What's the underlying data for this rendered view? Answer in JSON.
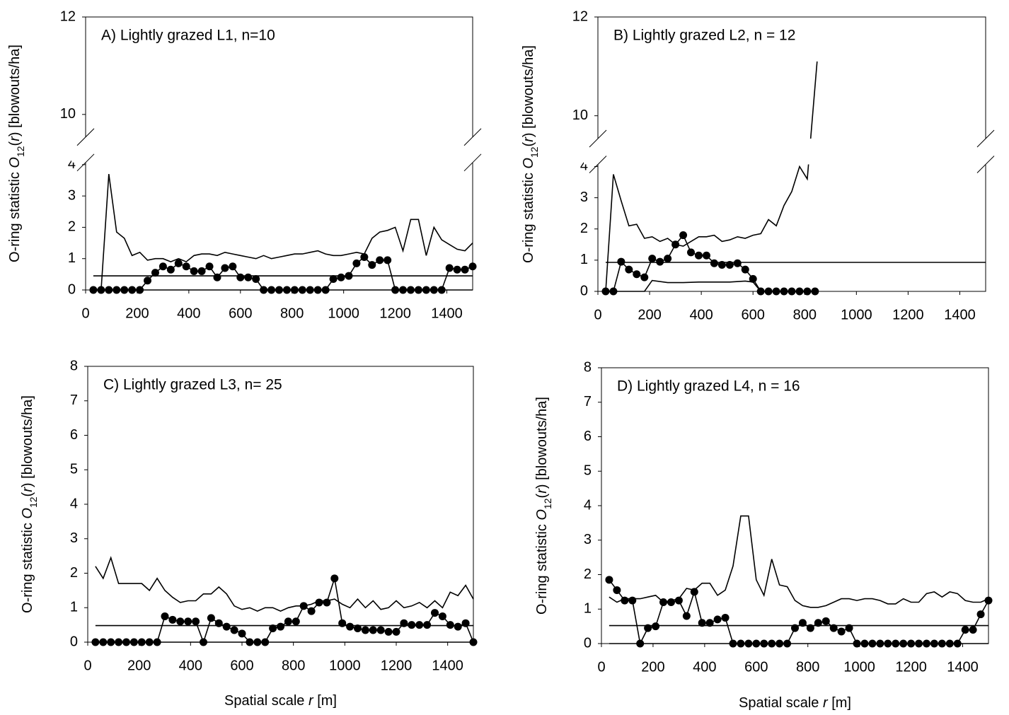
{
  "chart_data": [
    {
      "type": "line",
      "title": "A) Lightly grazed L1, n=10",
      "ylabel": [
        "O-ring statistic ",
        "O",
        "12",
        "(",
        "r",
        ") [blowouts/ha]"
      ],
      "xlim": [
        0,
        1500
      ],
      "xticks": [
        0,
        200,
        400,
        600,
        800,
        1000,
        1200,
        1400
      ],
      "ylim": [
        0,
        12
      ],
      "ybreak": [
        4,
        10
      ],
      "yticks": [
        0,
        1,
        2,
        3,
        4,
        10,
        12
      ],
      "x": [
        30,
        60,
        90,
        120,
        150,
        180,
        210,
        240,
        270,
        300,
        330,
        360,
        390,
        420,
        450,
        480,
        510,
        540,
        570,
        600,
        630,
        660,
        690,
        720,
        750,
        780,
        810,
        840,
        870,
        900,
        930,
        960,
        990,
        1020,
        1050,
        1080,
        1110,
        1140,
        1170,
        1200,
        1230,
        1260,
        1290,
        1320,
        1350,
        1380,
        1410,
        1440,
        1470,
        1500
      ],
      "series": [
        {
          "color": "#000000",
          "markers": true,
          "values": [
            0,
            0,
            0,
            0,
            0,
            0,
            0,
            0.3,
            0.55,
            0.75,
            0.65,
            0.85,
            0.75,
            0.6,
            0.6,
            0.75,
            0.4,
            0.7,
            0.75,
            0.4,
            0.4,
            0.35,
            0,
            0,
            0,
            0,
            0,
            0,
            0,
            0,
            0,
            0.35,
            0.4,
            0.45,
            0.85,
            1.05,
            0.8,
            0.95,
            0.95,
            0,
            0,
            0,
            0,
            0,
            0,
            0,
            0.7,
            0.65,
            0.65,
            0.75
          ]
        },
        {
          "color": "#000000",
          "markers": false,
          "values": [
            0,
            0,
            3.7,
            1.85,
            1.65,
            1.1,
            1.2,
            0.95,
            1.0,
            1.0,
            0.9,
            1.0,
            0.9,
            1.1,
            1.15,
            1.15,
            1.1,
            1.2,
            1.15,
            1.1,
            1.05,
            1.0,
            1.1,
            1.0,
            1.05,
            1.1,
            1.15,
            1.15,
            1.2,
            1.25,
            1.15,
            1.1,
            1.1,
            1.15,
            1.2,
            1.15,
            1.65,
            1.85,
            1.9,
            2.0,
            1.25,
            2.25,
            2.25,
            1.1,
            2.0,
            1.6,
            1.45,
            1.3,
            1.25,
            1.5
          ]
        },
        {
          "color": "#000000",
          "markers": false,
          "x": [
            30,
            1500
          ],
          "values": [
            0,
            0
          ]
        },
        {
          "color": "#000000",
          "markers": false,
          "x": [
            30,
            1500
          ],
          "values": [
            0.45,
            0.45
          ]
        }
      ]
    },
    {
      "type": "line",
      "title": "B) Lightly grazed L2, n = 12",
      "ylabel": [
        "O-ring statistic ",
        "O",
        "12",
        "(",
        "r",
        ") [blowouts/ha]"
      ],
      "xlim": [
        0,
        1500
      ],
      "xticks": [
        0,
        200,
        400,
        600,
        800,
        1000,
        1200,
        1400
      ],
      "ylim": [
        0,
        12
      ],
      "ybreak": [
        4,
        10
      ],
      "yticks": [
        0,
        1,
        2,
        3,
        4,
        10,
        12
      ],
      "x": [
        30,
        60,
        90,
        120,
        150,
        180,
        210,
        240,
        270,
        300,
        330,
        360,
        390,
        420,
        450,
        480,
        510,
        540,
        570,
        600,
        630,
        660,
        690,
        720,
        750,
        780,
        810,
        840
      ],
      "series": [
        {
          "color": "#000000",
          "markers": true,
          "values": [
            0,
            0,
            0.95,
            0.7,
            0.55,
            0.45,
            1.05,
            0.95,
            1.05,
            1.5,
            1.8,
            1.25,
            1.15,
            1.15,
            0.9,
            0.85,
            0.85,
            0.9,
            0.7,
            0.4,
            0,
            0,
            0,
            0,
            0,
            0,
            0,
            0
          ]
        },
        {
          "color": "#000000",
          "markers": false,
          "x": [
            30,
            60,
            90,
            120,
            150,
            180,
            210,
            240,
            270,
            300,
            330,
            360,
            390,
            420,
            450,
            480,
            510,
            540,
            570,
            600,
            630,
            660,
            690,
            720,
            750,
            780,
            810,
            848
          ],
          "values": [
            0,
            3.75,
            2.9,
            2.1,
            2.15,
            1.7,
            1.75,
            1.6,
            1.7,
            1.5,
            1.45,
            1.6,
            1.75,
            1.75,
            1.8,
            1.6,
            1.65,
            1.75,
            1.7,
            1.8,
            1.85,
            2.3,
            2.1,
            2.75,
            3.2,
            4.0,
            3.6,
            11.1
          ]
        },
        {
          "color": "#000000",
          "markers": false,
          "x": [
            30,
            180,
            210,
            270,
            330,
            390,
            450,
            510,
            570,
            600,
            630
          ],
          "values": [
            0,
            0,
            0.35,
            0.28,
            0.28,
            0.3,
            0.3,
            0.3,
            0.33,
            0.3,
            0
          ]
        },
        {
          "color": "#000000",
          "markers": false,
          "x": [
            30,
            1500
          ],
          "values": [
            0.93,
            0.93
          ]
        }
      ]
    },
    {
      "type": "line",
      "title": "C) Lightly grazed L3, n= 25",
      "ylabel": [
        "O-ring statistic ",
        "O",
        "12",
        "(",
        "r",
        ") [blowouts/ha]"
      ],
      "xlabel": [
        "Spatial scale ",
        "r",
        " [m]"
      ],
      "xlim": [
        0,
        1500
      ],
      "xticks": [
        0,
        200,
        400,
        600,
        800,
        1000,
        1200,
        1400
      ],
      "ylim": [
        0,
        8
      ],
      "yticks": [
        0,
        1,
        2,
        3,
        4,
        5,
        6,
        7,
        8
      ],
      "x": [
        30,
        60,
        90,
        120,
        150,
        180,
        210,
        240,
        270,
        300,
        330,
        360,
        390,
        420,
        450,
        480,
        510,
        540,
        570,
        600,
        630,
        660,
        690,
        720,
        750,
        780,
        810,
        840,
        870,
        900,
        930,
        960,
        990,
        1020,
        1050,
        1080,
        1110,
        1140,
        1170,
        1200,
        1230,
        1260,
        1290,
        1320,
        1350,
        1380,
        1410,
        1440,
        1470,
        1500
      ],
      "series": [
        {
          "color": "#000000",
          "markers": true,
          "values": [
            0,
            0,
            0,
            0,
            0,
            0,
            0,
            0,
            0,
            0.75,
            0.65,
            0.6,
            0.6,
            0.6,
            0,
            0.7,
            0.55,
            0.45,
            0.35,
            0.25,
            0,
            0,
            0,
            0.4,
            0.45,
            0.6,
            0.6,
            1.05,
            0.9,
            1.15,
            1.15,
            1.85,
            0.55,
            0.45,
            0.4,
            0.35,
            0.35,
            0.35,
            0.3,
            0.3,
            0.55,
            0.5,
            0.5,
            0.5,
            0.85,
            0.75,
            0.5,
            0.45,
            0.55,
            0
          ]
        },
        {
          "color": "#000000",
          "markers": false,
          "values": [
            2.2,
            1.85,
            2.45,
            1.7,
            1.7,
            1.7,
            1.7,
            1.5,
            1.85,
            1.5,
            1.3,
            1.15,
            1.2,
            1.2,
            1.4,
            1.4,
            1.6,
            1.4,
            1.05,
            0.95,
            1.0,
            0.9,
            1.0,
            1.0,
            0.9,
            1.0,
            1.05,
            1.05,
            1.1,
            1.2,
            1.2,
            1.25,
            1.1,
            1.0,
            1.25,
            1.0,
            1.2,
            0.95,
            1.0,
            1.2,
            1.0,
            1.05,
            1.15,
            1.0,
            1.2,
            1.0,
            1.45,
            1.35,
            1.65,
            1.25
          ]
        },
        {
          "color": "#000000",
          "markers": false,
          "x": [
            30,
            1500
          ],
          "values": [
            0,
            0
          ]
        },
        {
          "color": "#000000",
          "markers": false,
          "x": [
            30,
            1500
          ],
          "values": [
            0.48,
            0.48
          ]
        }
      ]
    },
    {
      "type": "line",
      "title": "D) Lightly grazed L4, n = 16",
      "ylabel": [
        "O-ring statistic ",
        "O",
        "12",
        "(",
        "r",
        ") [blowouts/ha]"
      ],
      "xlabel": [
        "Spatial scale ",
        "r",
        " [m]"
      ],
      "xlim": [
        0,
        1500
      ],
      "xticks": [
        0,
        200,
        400,
        600,
        800,
        1000,
        1200,
        1400
      ],
      "ylim": [
        0,
        8
      ],
      "yticks": [
        0,
        1,
        2,
        3,
        4,
        5,
        6,
        7,
        8
      ],
      "x": [
        30,
        60,
        90,
        120,
        150,
        180,
        210,
        240,
        270,
        300,
        330,
        360,
        390,
        420,
        450,
        480,
        510,
        540,
        570,
        600,
        630,
        660,
        690,
        720,
        750,
        780,
        810,
        840,
        870,
        900,
        930,
        960,
        990,
        1020,
        1050,
        1080,
        1110,
        1140,
        1170,
        1200,
        1230,
        1260,
        1290,
        1320,
        1350,
        1380,
        1410,
        1440,
        1470,
        1500
      ],
      "series": [
        {
          "color": "#000000",
          "markers": true,
          "values": [
            1.85,
            1.55,
            1.25,
            1.25,
            0,
            0.45,
            0.5,
            1.2,
            1.2,
            1.25,
            0.8,
            1.5,
            0.6,
            0.6,
            0.7,
            0.75,
            0,
            0,
            0,
            0,
            0,
            0,
            0,
            0,
            0.45,
            0.6,
            0.45,
            0.6,
            0.65,
            0.45,
            0.35,
            0.45,
            0,
            0,
            0,
            0,
            0,
            0,
            0,
            0,
            0,
            0,
            0,
            0,
            0,
            0,
            0.4,
            0.4,
            0.85,
            1.25
          ]
        },
        {
          "color": "#000000",
          "markers": false,
          "values": [
            1.35,
            1.2,
            1.3,
            1.3,
            1.3,
            1.35,
            1.4,
            1.2,
            1.25,
            1.3,
            1.6,
            1.55,
            1.75,
            1.75,
            1.4,
            1.55,
            2.25,
            3.7,
            3.7,
            1.85,
            1.4,
            2.45,
            1.7,
            1.65,
            1.25,
            1.1,
            1.05,
            1.05,
            1.1,
            1.2,
            1.3,
            1.3,
            1.25,
            1.3,
            1.3,
            1.25,
            1.15,
            1.15,
            1.3,
            1.2,
            1.2,
            1.45,
            1.5,
            1.35,
            1.5,
            1.45,
            1.25,
            1.2,
            1.2,
            1.3
          ]
        },
        {
          "color": "#000000",
          "markers": false,
          "x": [
            30,
            1500
          ],
          "values": [
            0,
            0
          ]
        },
        {
          "color": "#000000",
          "markers": false,
          "x": [
            30,
            1500
          ],
          "values": [
            0.52,
            0.52
          ]
        }
      ]
    }
  ]
}
